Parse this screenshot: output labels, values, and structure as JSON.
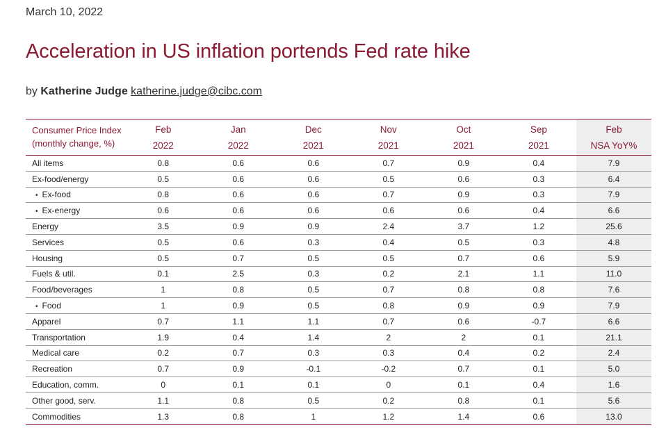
{
  "header": {
    "date": "March 10, 2022",
    "title": "Acceleration in US inflation portends Fed rate hike",
    "byline_prefix": "by",
    "author": "Katherine Judge",
    "email": "katherine.judge@cibc.com"
  },
  "table": {
    "label_header": [
      "Consumer Price Index",
      "(monthly change, %)"
    ],
    "columns": [
      {
        "top": "Feb",
        "bottom": "2022"
      },
      {
        "top": "Jan",
        "bottom": "2022"
      },
      {
        "top": "Dec",
        "bottom": "2021"
      },
      {
        "top": "Nov",
        "bottom": "2021"
      },
      {
        "top": "Oct",
        "bottom": "2021"
      },
      {
        "top": "Sep",
        "bottom": "2021"
      },
      {
        "top": "Feb",
        "bottom": "NSA YoY%"
      }
    ],
    "rows": [
      {
        "label": "All items",
        "sub": false,
        "values": [
          "0.8",
          "0.6",
          "0.6",
          "0.7",
          "0.9",
          "0.4",
          "7.9"
        ]
      },
      {
        "label": "Ex-food/energy",
        "sub": false,
        "values": [
          "0.5",
          "0.6",
          "0.6",
          "0.5",
          "0.6",
          "0.3",
          "6.4"
        ]
      },
      {
        "label": "Ex-food",
        "sub": true,
        "values": [
          "0.8",
          "0.6",
          "0.6",
          "0.7",
          "0.9",
          "0.3",
          "7.9"
        ]
      },
      {
        "label": "Ex-energy",
        "sub": true,
        "values": [
          "0.6",
          "0.6",
          "0.6",
          "0.6",
          "0.6",
          "0.4",
          "6.6"
        ]
      },
      {
        "label": "Energy",
        "sub": false,
        "values": [
          "3.5",
          "0.9",
          "0.9",
          "2.4",
          "3.7",
          "1.2",
          "25.6"
        ]
      },
      {
        "label": "Services",
        "sub": false,
        "values": [
          "0.5",
          "0.6",
          "0.3",
          "0.4",
          "0.5",
          "0.3",
          "4.8"
        ]
      },
      {
        "label": "Housing",
        "sub": false,
        "values": [
          "0.5",
          "0.7",
          "0.5",
          "0.5",
          "0.7",
          "0.6",
          "5.9"
        ]
      },
      {
        "label": "Fuels & util.",
        "sub": false,
        "values": [
          "0.1",
          "2.5",
          "0.3",
          "0.2",
          "2.1",
          "1.1",
          "11.0"
        ]
      },
      {
        "label": "Food/beverages",
        "sub": false,
        "values": [
          "1",
          "0.8",
          "0.5",
          "0.7",
          "0.8",
          "0.8",
          "7.6"
        ]
      },
      {
        "label": "Food",
        "sub": true,
        "values": [
          "1",
          "0.9",
          "0.5",
          "0.8",
          "0.9",
          "0.9",
          "7.9"
        ]
      },
      {
        "label": "Apparel",
        "sub": false,
        "values": [
          "0.7",
          "1.1",
          "1.1",
          "0.7",
          "0.6",
          "-0.7",
          "6.6"
        ]
      },
      {
        "label": "Transportation",
        "sub": false,
        "values": [
          "1.9",
          "0.4",
          "1.4",
          "2",
          "2",
          "0.1",
          "21.1"
        ]
      },
      {
        "label": "Medical care",
        "sub": false,
        "values": [
          "0.2",
          "0.7",
          "0.3",
          "0.3",
          "0.4",
          "0.2",
          "2.4"
        ]
      },
      {
        "label": "Recreation",
        "sub": false,
        "values": [
          "0.7",
          "0.9",
          "-0.1",
          "-0.2",
          "0.7",
          "0.1",
          "5.0"
        ]
      },
      {
        "label": "Education, comm.",
        "sub": false,
        "values": [
          "0",
          "0.1",
          "0.1",
          "0",
          "0.1",
          "0.4",
          "1.6"
        ]
      },
      {
        "label": "Other good, serv.",
        "sub": false,
        "values": [
          "1.1",
          "0.8",
          "0.5",
          "0.2",
          "0.8",
          "0.1",
          "5.6"
        ]
      },
      {
        "label": "Commodities",
        "sub": false,
        "values": [
          "1.3",
          "0.8",
          "1",
          "1.2",
          "1.4",
          "0.6",
          "13.0"
        ]
      }
    ]
  }
}
